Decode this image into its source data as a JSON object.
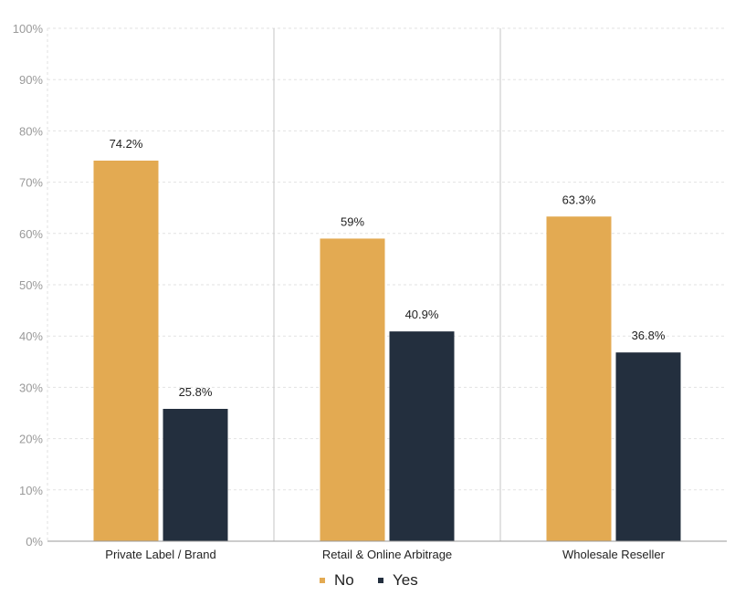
{
  "chart_data": {
    "type": "bar",
    "title": "",
    "xlabel": "",
    "ylabel": "",
    "ylim": [
      0,
      100
    ],
    "yticks": [
      "0%",
      "10%",
      "20%",
      "30%",
      "40%",
      "50%",
      "60%",
      "70%",
      "80%",
      "90%",
      "100%"
    ],
    "grid": true,
    "legend_position": "bottom-center",
    "categories": [
      "Private Label / Brand",
      "Retail & Online Arbitrage",
      "Wholesale Reseller"
    ],
    "series": [
      {
        "name": "No",
        "color": "#E3AA52",
        "values": [
          74.2,
          59,
          63.3
        ],
        "labels": [
          "74.2%",
          "59%",
          "63.3%"
        ]
      },
      {
        "name": "Yes",
        "color": "#232F3E",
        "values": [
          25.8,
          40.9,
          36.8
        ],
        "labels": [
          "25.8%",
          "40.9%",
          "36.8%"
        ]
      }
    ]
  }
}
